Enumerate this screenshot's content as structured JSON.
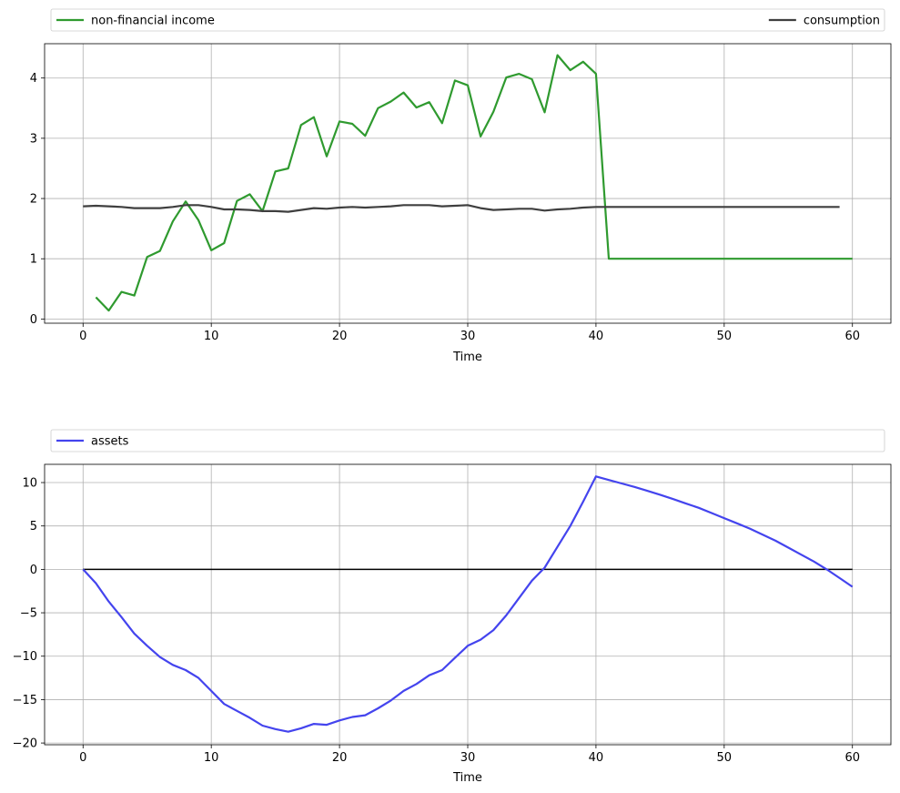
{
  "chart_data": [
    {
      "type": "line",
      "xlabel": "Time",
      "xlim": [
        -3,
        63
      ],
      "ylim": [
        -0.07,
        4.57
      ],
      "x_ticks": [
        0,
        10,
        20,
        30,
        40,
        50,
        60
      ],
      "y_ticks": [
        0,
        1,
        2,
        3,
        4
      ],
      "grid": true,
      "legend": {
        "placement": "top-outside-expanded"
      },
      "series": [
        {
          "name": "non-financial income",
          "color": "#2f9a2f",
          "x": [
            1,
            2,
            3,
            4,
            5,
            6,
            7,
            8,
            9,
            10,
            11,
            12,
            13,
            14,
            15,
            16,
            17,
            18,
            19,
            20,
            21,
            22,
            23,
            24,
            25,
            26,
            27,
            28,
            29,
            30,
            31,
            32,
            33,
            34,
            35,
            36,
            37,
            38,
            39,
            40,
            41,
            42,
            43,
            44,
            45,
            46,
            47,
            48,
            49,
            50,
            51,
            52,
            53,
            54,
            55,
            56,
            57,
            58,
            59,
            60
          ],
          "values": [
            0.36,
            0.14,
            0.45,
            0.39,
            1.03,
            1.13,
            1.62,
            1.95,
            1.64,
            1.14,
            1.26,
            1.96,
            2.07,
            1.79,
            2.45,
            2.5,
            3.22,
            3.35,
            2.7,
            3.28,
            3.24,
            3.04,
            3.5,
            3.61,
            3.76,
            3.51,
            3.6,
            3.25,
            3.96,
            3.88,
            3.03,
            3.44,
            4.01,
            4.07,
            3.98,
            3.43,
            4.38,
            4.13,
            4.27,
            4.07,
            1,
            1,
            1,
            1,
            1,
            1,
            1,
            1,
            1,
            1,
            1,
            1,
            1,
            1,
            1,
            1,
            1,
            1,
            1,
            1
          ]
        },
        {
          "name": "consumption",
          "color": "#3f3f3f",
          "x": [
            0,
            1,
            2,
            3,
            4,
            5,
            6,
            7,
            8,
            9,
            10,
            11,
            12,
            13,
            14,
            15,
            16,
            17,
            18,
            19,
            20,
            21,
            22,
            23,
            24,
            25,
            26,
            27,
            28,
            29,
            30,
            31,
            32,
            33,
            34,
            35,
            36,
            37,
            38,
            39,
            40,
            41,
            42,
            43,
            44,
            45,
            46,
            47,
            48,
            49,
            50,
            51,
            52,
            53,
            54,
            55,
            56,
            57,
            58,
            59
          ],
          "values": [
            1.87,
            1.88,
            1.87,
            1.86,
            1.84,
            1.84,
            1.84,
            1.86,
            1.89,
            1.89,
            1.86,
            1.82,
            1.82,
            1.81,
            1.79,
            1.79,
            1.78,
            1.81,
            1.84,
            1.83,
            1.85,
            1.86,
            1.85,
            1.86,
            1.87,
            1.89,
            1.89,
            1.89,
            1.87,
            1.88,
            1.89,
            1.84,
            1.81,
            1.82,
            1.83,
            1.83,
            1.8,
            1.82,
            1.83,
            1.85,
            1.86,
            1.86,
            1.86,
            1.86,
            1.86,
            1.86,
            1.86,
            1.86,
            1.86,
            1.86,
            1.86,
            1.86,
            1.86,
            1.86,
            1.86,
            1.86,
            1.86,
            1.86,
            1.86,
            1.86
          ]
        }
      ]
    },
    {
      "type": "line",
      "xlabel": "Time",
      "xlim": [
        -3,
        63
      ],
      "ylim": [
        -20.2,
        12.1
      ],
      "x_ticks": [
        0,
        10,
        20,
        30,
        40,
        50,
        60
      ],
      "y_ticks": [
        10,
        5,
        0,
        -5,
        -10,
        -15,
        -20
      ],
      "grid": true,
      "legend": {
        "placement": "top-outside-expanded"
      },
      "reference_line": {
        "y": 0,
        "x_range": [
          0,
          60
        ],
        "color": "#000000"
      },
      "series": [
        {
          "name": "assets",
          "color": "#4444ee",
          "x": [
            0,
            1,
            2,
            3,
            4,
            5,
            6,
            7,
            8,
            9,
            10,
            11,
            12,
            13,
            14,
            15,
            16,
            17,
            18,
            19,
            20,
            21,
            22,
            23,
            24,
            25,
            26,
            27,
            28,
            29,
            30,
            31,
            32,
            33,
            34,
            35,
            36,
            37,
            38,
            39,
            40,
            41,
            42,
            43,
            44,
            45,
            46,
            47,
            48,
            49,
            50,
            51,
            52,
            53,
            54,
            55,
            56,
            57,
            58,
            59,
            60
          ],
          "values": [
            0,
            -1.6,
            -3.7,
            -5.5,
            -7.4,
            -8.8,
            -10.1,
            -11,
            -11.6,
            -12.5,
            -14,
            -15.5,
            -16.3,
            -17.1,
            -18,
            -18.4,
            -18.7,
            -18.3,
            -17.8,
            -17.9,
            -17.4,
            -17,
            -16.8,
            -16,
            -15.1,
            -14,
            -13.2,
            -12.2,
            -11.6,
            -10.2,
            -8.8,
            -8.1,
            -7,
            -5.3,
            -3.3,
            -1.3,
            0.2,
            2.6,
            5,
            7.8,
            10.7,
            10.3,
            9.9,
            9.5,
            9.05,
            8.6,
            8.1,
            7.6,
            7.1,
            6.5,
            5.9,
            5.3,
            4.7,
            4,
            3.3,
            2.5,
            1.7,
            0.9,
            0,
            -1,
            -2
          ]
        }
      ]
    }
  ]
}
